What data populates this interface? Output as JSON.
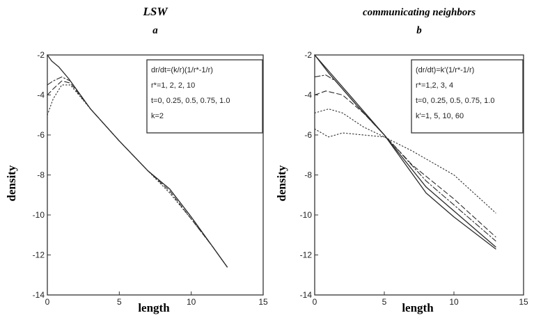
{
  "chart_data": [
    {
      "type": "line",
      "title": "LSW",
      "subtitle": "a",
      "xlabel": "length",
      "ylabel": "density",
      "xlim": [
        0,
        15
      ],
      "ylim": [
        -14,
        -2
      ],
      "xticks": [
        "0",
        "5",
        "10",
        "15"
      ],
      "yticks": [
        "-2",
        "-4",
        "-6",
        "-8",
        "-10",
        "-12",
        "-14"
      ],
      "grid": false,
      "legend_position": "top-right",
      "annotation_lines": [
        "dr/dt=(k/r)(1/r*-1/r)",
        "r*=1, 2, 2, 10",
        "t=0, 0.25, 0.5, 0.75, 1.0",
        "k=2"
      ],
      "series": [
        {
          "style": "solid",
          "x": [
            0,
            0.3,
            0.8,
            1.5,
            3,
            5,
            7,
            8.5,
            10,
            11.5,
            12.5
          ],
          "y": [
            -2.0,
            -2.3,
            -2.6,
            -3.2,
            -4.7,
            -6.3,
            -7.8,
            -8.7,
            -10.1,
            -11.6,
            -12.6
          ]
        },
        {
          "style": "dashdot",
          "x": [
            0,
            0.4,
            1.0,
            1.6,
            3,
            5,
            7,
            8.5,
            10,
            11.5,
            12.5
          ],
          "y": [
            -3.5,
            -3.3,
            -3.1,
            -3.3,
            -4.7,
            -6.3,
            -7.8,
            -8.7,
            -10.1,
            -11.6,
            -12.6
          ]
        },
        {
          "style": "dashed",
          "x": [
            0,
            0.4,
            1.0,
            1.6,
            3,
            5,
            7,
            8.5,
            10,
            11.5,
            12.5
          ],
          "y": [
            -4.0,
            -3.7,
            -3.3,
            -3.4,
            -4.7,
            -6.3,
            -7.8,
            -8.8,
            -10.2,
            -11.6,
            -12.6
          ]
        },
        {
          "style": "dotted",
          "x": [
            0,
            0.4,
            1.0,
            1.6,
            3,
            5,
            7,
            8.5,
            10,
            11.5,
            12.5
          ],
          "y": [
            -5.0,
            -4.2,
            -3.5,
            -3.5,
            -4.7,
            -6.3,
            -7.8,
            -8.9,
            -10.2,
            -11.6,
            -12.6
          ]
        }
      ]
    },
    {
      "type": "line",
      "title": "communicating neighbors",
      "subtitle": "b",
      "xlabel": "length",
      "ylabel": "density",
      "xlim": [
        0,
        15
      ],
      "ylim": [
        -14,
        -2
      ],
      "xticks": [
        "0",
        "5",
        "10",
        "15"
      ],
      "yticks": [
        "-2",
        "-4",
        "-6",
        "-8",
        "-10",
        "-12",
        "-14"
      ],
      "grid": false,
      "legend_position": "top-right",
      "annotation_lines": [
        "(dr/dt)=k'(1/r*-1/r)",
        "r*=1,2, 3, 4",
        "t=0, 0.25, 0.5, 0.75, 1.0",
        "k'=1, 5, 10, 60"
      ],
      "series": [
        {
          "style": "solid",
          "x": [
            0,
            1,
            3,
            5,
            8,
            10,
            13
          ],
          "y": [
            -2.0,
            -2.8,
            -4.4,
            -6.0,
            -8.9,
            -10.1,
            -11.7
          ]
        },
        {
          "style": "solid",
          "x": [
            0,
            1,
            3,
            5,
            8,
            10,
            13
          ],
          "y": [
            -2.0,
            -2.9,
            -4.5,
            -6.0,
            -8.6,
            -9.8,
            -11.6
          ]
        },
        {
          "style": "dashdot",
          "x": [
            0,
            0.8,
            1.5,
            3,
            5,
            8,
            10,
            13
          ],
          "y": [
            -3.1,
            -3.0,
            -3.3,
            -4.5,
            -6.0,
            -8.3,
            -9.5,
            -11.3
          ]
        },
        {
          "style": "dashed",
          "x": [
            0,
            0.8,
            2,
            3.5,
            5,
            7,
            10,
            13
          ],
          "y": [
            -4.0,
            -3.8,
            -4.0,
            -4.9,
            -6.0,
            -7.5,
            -9.2,
            -11.1
          ]
        },
        {
          "style": "dotted",
          "x": [
            0,
            1,
            2,
            3.5,
            5,
            7,
            10,
            13
          ],
          "y": [
            -4.9,
            -4.7,
            -4.9,
            -5.6,
            -6.1,
            -6.8,
            -8.0,
            -9.9
          ]
        },
        {
          "style": "dotted",
          "x": [
            0,
            0.5,
            1,
            2,
            3.5,
            5
          ],
          "y": [
            -5.7,
            -5.9,
            -6.1,
            -5.9,
            -6.0,
            -6.1
          ]
        }
      ]
    }
  ]
}
